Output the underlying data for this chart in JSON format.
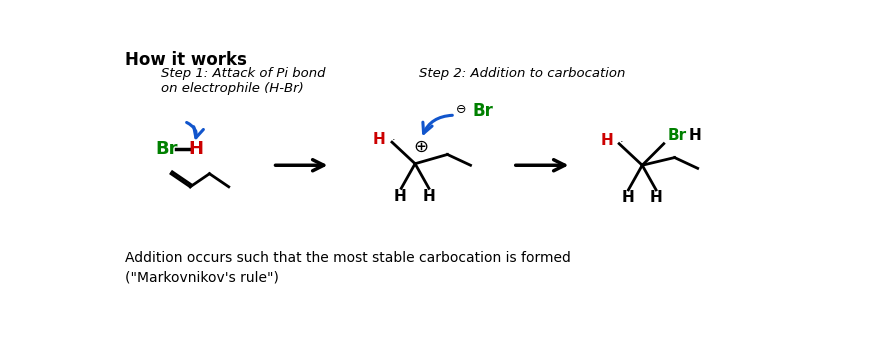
{
  "title": "How it works",
  "step1_label": "Step 1: Attack of Pi bond\non electrophile (H-Br)",
  "step2_label": "Step 2: Addition to carbocation",
  "footer": "Addition occurs such that the most stable carbocation is formed\n(\"Markovnikov's rule\")",
  "bg_color": "#ffffff",
  "black": "#000000",
  "red": "#cc0000",
  "green": "#008000",
  "blue": "#1155cc",
  "fig_w": 8.7,
  "fig_h": 3.44,
  "dpi": 100
}
